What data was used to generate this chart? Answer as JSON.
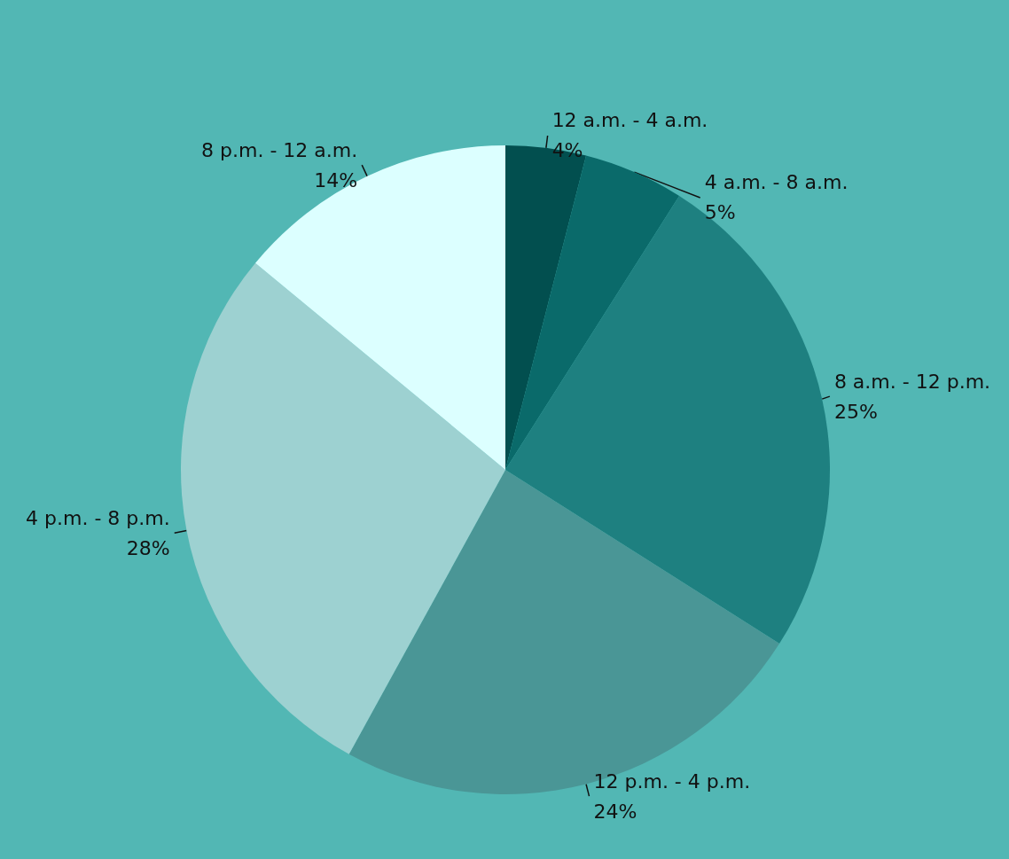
{
  "chart_data": {
    "type": "pie",
    "categories": [
      "12 a.m. - 4 a.m.",
      "4 a.m. - 8 a.m.",
      "8 a.m. - 12 p.m.",
      "12 p.m. - 4 p.m.",
      "4 p.m. - 8 p.m.",
      "8 p.m. - 12 a.m."
    ],
    "values": [
      4,
      5,
      25,
      24,
      28,
      14
    ],
    "value_labels": [
      "4%",
      "5%",
      "25%",
      "24%",
      "28%",
      "14%"
    ],
    "colors": [
      "#024f4f",
      "#0a6a6a",
      "#1e8080",
      "#4a9696",
      "#9dd1d1",
      "#dcffff"
    ],
    "legend": false
  }
}
